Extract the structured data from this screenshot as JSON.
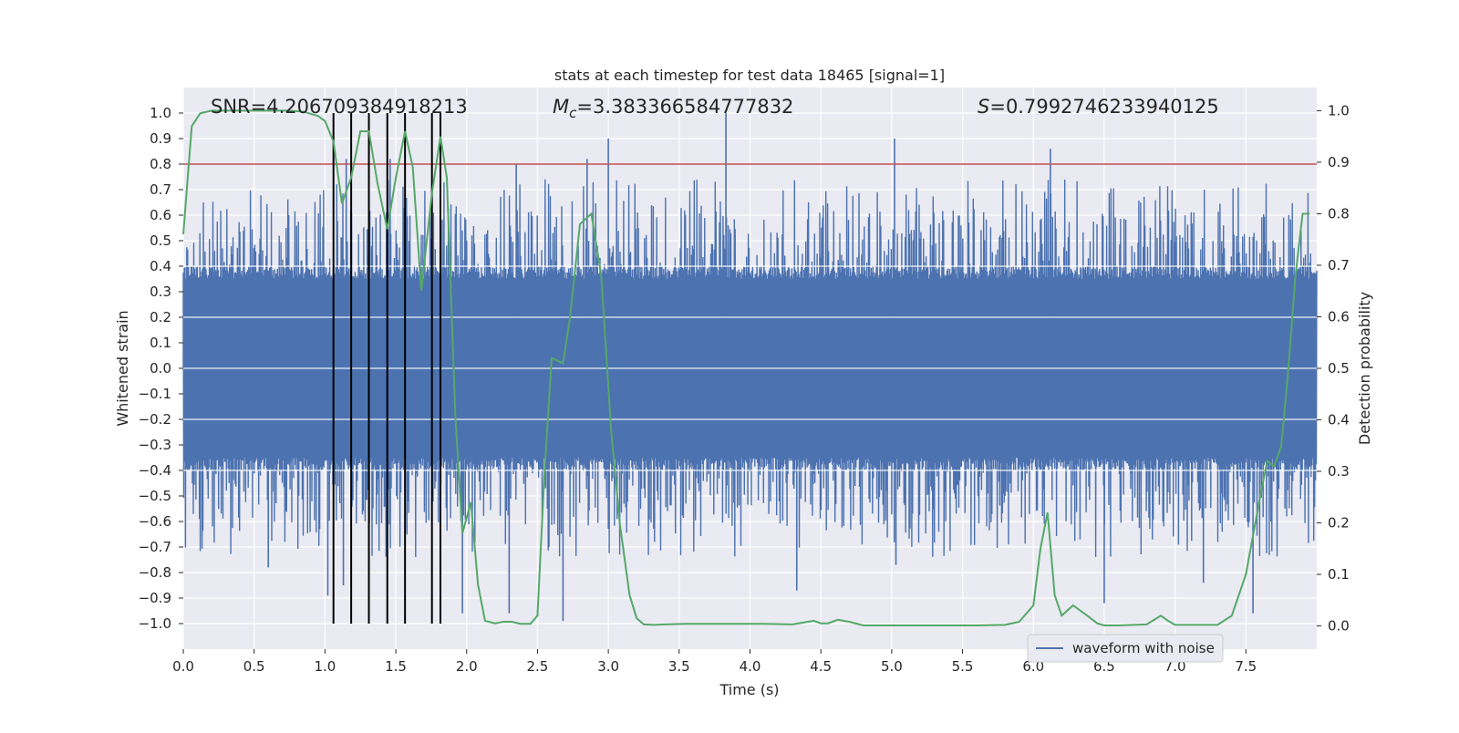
{
  "chart_data": {
    "type": "line",
    "title": "stats at each timestep for test data 18465 [signal=1]",
    "xlabel": "Time (s)",
    "ylabel": "Whitened strain",
    "y2label": "Detection probability",
    "xlim": [
      0,
      8
    ],
    "ylim": [
      -1.1,
      1.1
    ],
    "y2lim": [
      -0.045,
      1.045
    ],
    "x_ticks": [
      0.0,
      0.5,
      1.0,
      1.5,
      2.0,
      2.5,
      3.0,
      3.5,
      4.0,
      4.5,
      5.0,
      5.5,
      6.0,
      6.5,
      7.0,
      7.5
    ],
    "x_tick_labels": [
      "0.0",
      "0.5",
      "1.0",
      "1.5",
      "2.0",
      "2.5",
      "3.0",
      "3.5",
      "4.0",
      "4.5",
      "5.0",
      "5.5",
      "6.0",
      "6.5",
      "7.0",
      "7.5"
    ],
    "y_ticks": [
      1.0,
      0.9,
      0.8,
      0.7,
      0.6,
      0.5,
      0.4,
      0.3,
      0.2,
      0.1,
      0.0,
      -0.1,
      -0.2,
      -0.3,
      -0.4,
      -0.5,
      -0.6,
      -0.7,
      -0.8,
      -0.9,
      -1.0
    ],
    "y_tick_labels": [
      "1.0",
      "0.9",
      "0.8",
      "0.7",
      "0.6",
      "0.5",
      "0.4",
      "0.3",
      "0.2",
      "0.1",
      "0.0",
      "−0.1",
      "−0.2",
      "−0.3",
      "−0.4",
      "−0.5",
      "−0.6",
      "−0.7",
      "−0.8",
      "−0.9",
      "−1.0"
    ],
    "y2_ticks": [
      1.0,
      0.9,
      0.8,
      0.7,
      0.6,
      0.5,
      0.4,
      0.3,
      0.2,
      0.1,
      0.0
    ],
    "y2_tick_labels": [
      "1.0",
      "0.9",
      "0.8",
      "0.7",
      "0.6",
      "0.5",
      "0.4",
      "0.3",
      "0.2",
      "0.1",
      "0.0"
    ],
    "grid": true,
    "legend": {
      "position": "lower-right",
      "entries": [
        "waveform with noise"
      ]
    },
    "annotations": {
      "snr": "SNR=4.206709384918213",
      "mc_symbol": "M",
      "mc_subscript": "c",
      "mc_value": "=3.383366584777832",
      "s_symbol": "S",
      "s_value": "=0.7992746233940125"
    },
    "threshold_line": {
      "y": 0.8,
      "color": "#c44e52"
    },
    "vertical_markers_x": [
      1.06,
      1.185,
      1.31,
      1.44,
      1.565,
      1.755,
      1.815
    ],
    "waveform": {
      "name": "waveform with noise",
      "color": "#4c72b0",
      "core_amplitude": 0.35,
      "typical_peak": 0.62,
      "spikes": [
        {
          "x": 3.83,
          "y": 1.0
        },
        {
          "x": 3.0,
          "y": 0.9
        },
        {
          "x": 5.02,
          "y": 0.9
        },
        {
          "x": 6.12,
          "y": 0.86
        },
        {
          "x": 2.85,
          "y": 0.82
        },
        {
          "x": 1.46,
          "y": 0.82
        },
        {
          "x": 1.15,
          "y": 0.82
        },
        {
          "x": 2.35,
          "y": 0.8
        },
        {
          "x": 2.68,
          "y": -0.99
        },
        {
          "x": 2.3,
          "y": -0.96
        },
        {
          "x": 7.55,
          "y": -0.96
        },
        {
          "x": 1.97,
          "y": -0.96
        },
        {
          "x": 6.5,
          "y": -0.92
        },
        {
          "x": 1.02,
          "y": -0.89
        },
        {
          "x": 4.33,
          "y": -0.87
        },
        {
          "x": 1.13,
          "y": -0.85
        },
        {
          "x": 7.2,
          "y": -0.84
        },
        {
          "x": 5.03,
          "y": -0.77
        },
        {
          "x": 0.6,
          "y": -0.78
        }
      ]
    },
    "series": [
      {
        "name": "Detection probability",
        "color": "#55a868",
        "axis": "right",
        "x": [
          0.0,
          0.06,
          0.12,
          0.2,
          0.3,
          0.45,
          0.6,
          0.75,
          0.85,
          0.95,
          1.0,
          1.06,
          1.12,
          1.185,
          1.25,
          1.31,
          1.37,
          1.44,
          1.5,
          1.565,
          1.62,
          1.68,
          1.755,
          1.815,
          1.86,
          1.92,
          1.97,
          2.03,
          2.08,
          2.13,
          2.2,
          2.26,
          2.32,
          2.38,
          2.45,
          2.5,
          2.55,
          2.6,
          2.68,
          2.73,
          2.8,
          2.88,
          2.95,
          3.02,
          3.08,
          3.15,
          3.2,
          3.25,
          3.32,
          3.4,
          3.55,
          3.7,
          3.9,
          4.1,
          4.3,
          4.45,
          4.5,
          4.55,
          4.62,
          4.7,
          4.8,
          5.0,
          5.3,
          5.6,
          5.8,
          5.9,
          6.0,
          6.05,
          6.1,
          6.15,
          6.2,
          6.28,
          6.38,
          6.45,
          6.5,
          6.6,
          6.8,
          6.9,
          6.95,
          7.0,
          7.1,
          7.2,
          7.3,
          7.4,
          7.5,
          7.6,
          7.65,
          7.7,
          7.75,
          7.8,
          7.85,
          7.9,
          7.95
        ],
        "values": [
          0.76,
          0.97,
          0.995,
          1.0,
          1.0,
          1.0,
          1.0,
          1.0,
          0.998,
          0.99,
          0.98,
          0.94,
          0.82,
          0.87,
          0.96,
          0.96,
          0.86,
          0.77,
          0.87,
          0.96,
          0.89,
          0.65,
          0.84,
          0.95,
          0.87,
          0.41,
          0.18,
          0.24,
          0.08,
          0.01,
          0.005,
          0.008,
          0.008,
          0.004,
          0.004,
          0.02,
          0.3,
          0.52,
          0.51,
          0.6,
          0.78,
          0.8,
          0.68,
          0.38,
          0.2,
          0.06,
          0.015,
          0.003,
          0.002,
          0.003,
          0.004,
          0.004,
          0.004,
          0.004,
          0.003,
          0.01,
          0.005,
          0.005,
          0.012,
          0.008,
          0.001,
          0.001,
          0.001,
          0.001,
          0.002,
          0.008,
          0.04,
          0.15,
          0.22,
          0.06,
          0.02,
          0.04,
          0.02,
          0.005,
          0.001,
          0.001,
          0.003,
          0.02,
          0.01,
          0.002,
          0.002,
          0.002,
          0.002,
          0.02,
          0.1,
          0.25,
          0.32,
          0.31,
          0.35,
          0.5,
          0.68,
          0.8,
          0.8
        ]
      }
    ]
  }
}
